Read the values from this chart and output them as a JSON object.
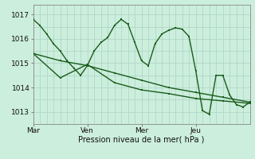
{
  "title": "",
  "xlabel": "Pression niveau de la mer( hPa )",
  "ylabel": "",
  "bg_color": "#cceedd",
  "grid_color_v": "#aad4c4",
  "grid_color_h": "#aad4c4",
  "line_color": "#1a5c1a",
  "ylim": [
    1012.5,
    1017.4
  ],
  "xlim": [
    0,
    96
  ],
  "xtick_positions": [
    0,
    24,
    48,
    72
  ],
  "xtick_labels": [
    "Mar",
    "Ven",
    "Mer",
    "Jeu"
  ],
  "vline_major": [
    0,
    24,
    48,
    72,
    96
  ],
  "ytick_positions": [
    1013,
    1014,
    1015,
    1016,
    1017
  ],
  "ytick_labels": [
    "1013",
    "1014",
    "1015",
    "1016",
    "1017"
  ],
  "line1_x": [
    0,
    3,
    6,
    9,
    12,
    15,
    18,
    21,
    24,
    27,
    30,
    33,
    36,
    39,
    42,
    45,
    48,
    51,
    54,
    57,
    60,
    63,
    66,
    69,
    72,
    75,
    78,
    81,
    84,
    87,
    90,
    93,
    96
  ],
  "line1_y": [
    1016.8,
    1016.55,
    1016.2,
    1015.8,
    1015.5,
    1015.1,
    1014.8,
    1014.5,
    1014.9,
    1015.5,
    1015.85,
    1016.05,
    1016.55,
    1016.8,
    1016.6,
    1015.85,
    1015.1,
    1014.9,
    1015.8,
    1016.2,
    1016.35,
    1016.45,
    1016.4,
    1016.1,
    1014.7,
    1013.05,
    1012.9,
    1014.5,
    1014.5,
    1013.7,
    1013.3,
    1013.2,
    1013.4
  ],
  "line2_x": [
    0,
    12,
    24,
    36,
    48,
    60,
    72,
    84,
    96
  ],
  "line2_y": [
    1015.4,
    1015.1,
    1014.9,
    1014.6,
    1014.3,
    1014.0,
    1013.8,
    1013.6,
    1013.4
  ],
  "line3_x": [
    0,
    12,
    24,
    36,
    48,
    60,
    72,
    84,
    96
  ],
  "line3_y": [
    1015.4,
    1014.4,
    1014.95,
    1014.2,
    1013.9,
    1013.75,
    1013.55,
    1013.45,
    1013.35
  ]
}
